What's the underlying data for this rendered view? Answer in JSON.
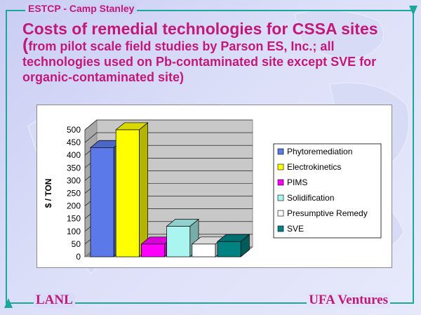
{
  "header": {
    "label": "ESTCP - Camp Stanley"
  },
  "title": {
    "line1": "Costs of remedial technologies for CSSA sites",
    "open_paren": "(",
    "sub": "from pilot scale field studies by Parson ES, Inc.; all technologies used on Pb-contaminated site except SVE for organic-contaminated site)"
  },
  "footer": {
    "left": "LANL",
    "right": "UFA Ventures"
  },
  "colors": {
    "accent": "#c2187a",
    "frame": "#1ba89a"
  },
  "chart_data": {
    "type": "bar",
    "categories": [
      "Phytoremediation",
      "Electrokinetics",
      "PIMS",
      "Solidification",
      "Presumptive Remedy",
      "SVE"
    ],
    "values": [
      430,
      500,
      50,
      120,
      50,
      60
    ],
    "colors": [
      "#5b79e8",
      "#ffff00",
      "#ff00ff",
      "#aaf5f0",
      "#ffffff",
      "#008282"
    ],
    "ylabel": "$ / TON",
    "yticks": [
      "0",
      "50",
      "100",
      "150",
      "200",
      "250",
      "300",
      "350",
      "400",
      "450",
      "500"
    ],
    "ylim": [
      0,
      500
    ],
    "grid": true,
    "legend": "right",
    "style": "3d"
  }
}
